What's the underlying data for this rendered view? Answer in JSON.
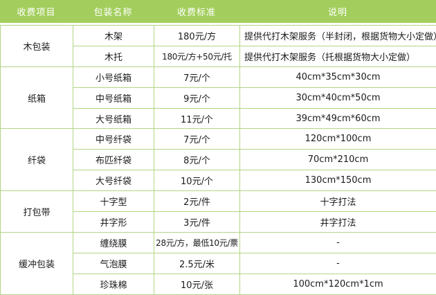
{
  "table": {
    "headers": [
      "收费项目",
      "包装名称",
      "收费标准",
      "说明"
    ],
    "groups": [
      {
        "item": "木包装",
        "rows": [
          {
            "name": "木架",
            "price": "180元/方",
            "note": "提供代打木架服务（半封闭，根据货物大小定做）",
            "note_align": "left"
          },
          {
            "name": "木托",
            "price": "180元/方+50元/托",
            "note": "提供代打木架服务（托根据货物大小定做）",
            "note_align": "left"
          }
        ]
      },
      {
        "item": "纸箱",
        "rows": [
          {
            "name": "小号纸箱",
            "price": "7元/个",
            "note": "40cm*35cm*30cm",
            "note_align": "center"
          },
          {
            "name": "中号纸箱",
            "price": "9元/个",
            "note": "30cm*40cm*50cm",
            "note_align": "center"
          },
          {
            "name": "大号纸箱",
            "price": "11元/个",
            "note": "39cm*49cm*60cm",
            "note_align": "center"
          }
        ]
      },
      {
        "item": "纤袋",
        "rows": [
          {
            "name": "中号纤袋",
            "price": "7元/个",
            "note": "120cm*100cm",
            "note_align": "center"
          },
          {
            "name": "布匹纤袋",
            "price": "8元/个",
            "note": "70cm*210cm",
            "note_align": "center"
          },
          {
            "name": "大号纤袋",
            "price": "10元/个",
            "note": "130cm*150cm",
            "note_align": "center"
          }
        ]
      },
      {
        "item": "打包带",
        "rows": [
          {
            "name": "十字型",
            "price": "2元/件",
            "note": "十字打法",
            "note_align": "center"
          },
          {
            "name": "井字形",
            "price": "3元/件",
            "note": "井字打法",
            "note_align": "center"
          }
        ]
      },
      {
        "item": "缓冲包装",
        "rows": [
          {
            "name": "缠绕膜",
            "price": "28元/方，最低10元/票",
            "note": "-",
            "note_align": "center"
          },
          {
            "name": "气泡膜",
            "price": "2.5元/米",
            "note": "-",
            "note_align": "center"
          },
          {
            "name": "珍珠棉",
            "price": "10元/张",
            "note": "100cm*120cm*1cm",
            "note_align": "center"
          }
        ]
      }
    ],
    "colors": {
      "header_bg": "#a3ce5d",
      "border": "#b3d484",
      "header_text": "#ffffff",
      "body_text": "#1a1a1a"
    }
  }
}
